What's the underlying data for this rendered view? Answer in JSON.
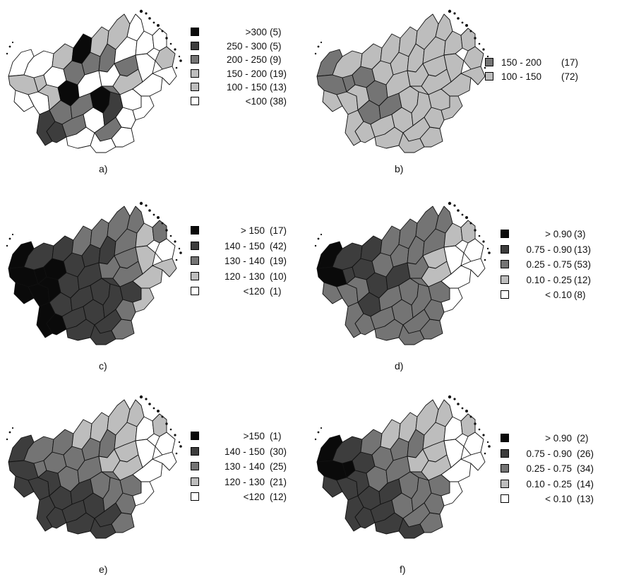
{
  "colors": {
    "black": "#0a0a0a",
    "dark": "#3d3d3d",
    "mid": "#747474",
    "light": "#bdbdbd",
    "white": "#ffffff",
    "border": "#111111"
  },
  "panels": [
    {
      "caption": "a)",
      "legend": [
        {
          "range": ">300",
          "count": "(5)",
          "shade": "black"
        },
        {
          "range": "250 - 300",
          "count": "(5)",
          "shade": "dark"
        },
        {
          "range": "200 - 250",
          "count": "(9)",
          "shade": "mid"
        },
        {
          "range": "150 - 200",
          "count": "(19)",
          "shade": "light"
        },
        {
          "range": "100 - 150",
          "count": "(13)",
          "shade": "light"
        },
        {
          "range": "<100",
          "count": "(38)",
          "shade": "white"
        }
      ],
      "map_scheme": "a"
    },
    {
      "caption": "b)",
      "legend": [
        {
          "range": "150 - 200",
          "count": "(17)",
          "shade": "mid"
        },
        {
          "range": "100 - 150",
          "count": "(72)",
          "shade": "light"
        }
      ],
      "map_scheme": "b"
    },
    {
      "caption": "c)",
      "legend": [
        {
          "range": "> 150",
          "count": "(17)",
          "shade": "black"
        },
        {
          "range": "140 - 150",
          "count": "(42)",
          "shade": "dark"
        },
        {
          "range": "130 - 140",
          "count": "(19)",
          "shade": "mid"
        },
        {
          "range": "120 - 130",
          "count": "(10)",
          "shade": "light"
        },
        {
          "range": "<120",
          "count": "(1)",
          "shade": "white"
        }
      ],
      "map_scheme": "c"
    },
    {
      "caption": "d)",
      "legend": [
        {
          "range": "> 0.90",
          "count": "(3)",
          "shade": "black"
        },
        {
          "range": "0.75 - 0.90",
          "count": "(13)",
          "shade": "dark"
        },
        {
          "range": "0.25 - 0.75",
          "count": "(53)",
          "shade": "mid"
        },
        {
          "range": "0.10 - 0.25",
          "count": "(12)",
          "shade": "light"
        },
        {
          "range": "< 0.10",
          "count": "(8)",
          "shade": "white"
        }
      ],
      "map_scheme": "d"
    },
    {
      "caption": "e)",
      "legend": [
        {
          "range": ">150",
          "count": "(1)",
          "shade": "black"
        },
        {
          "range": "140 - 150",
          "count": "(30)",
          "shade": "dark"
        },
        {
          "range": "130 - 140",
          "count": "(25)",
          "shade": "mid"
        },
        {
          "range": "120 - 130",
          "count": "(21)",
          "shade": "light"
        },
        {
          "range": "<120",
          "count": "(12)",
          "shade": "white"
        }
      ],
      "map_scheme": "e"
    },
    {
      "caption": "f)",
      "legend": [
        {
          "range": "> 0.90",
          "count": "(2)",
          "shade": "black"
        },
        {
          "range": "0.75 - 0.90",
          "count": "(26)",
          "shade": "dark"
        },
        {
          "range": "0.25 - 0.75",
          "count": "(34)",
          "shade": "mid"
        },
        {
          "range": "0.10 - 0.25",
          "count": "(14)",
          "shade": "light"
        },
        {
          "range": "< 0.10",
          "count": "(13)",
          "shade": "white"
        }
      ],
      "map_scheme": "f"
    }
  ]
}
